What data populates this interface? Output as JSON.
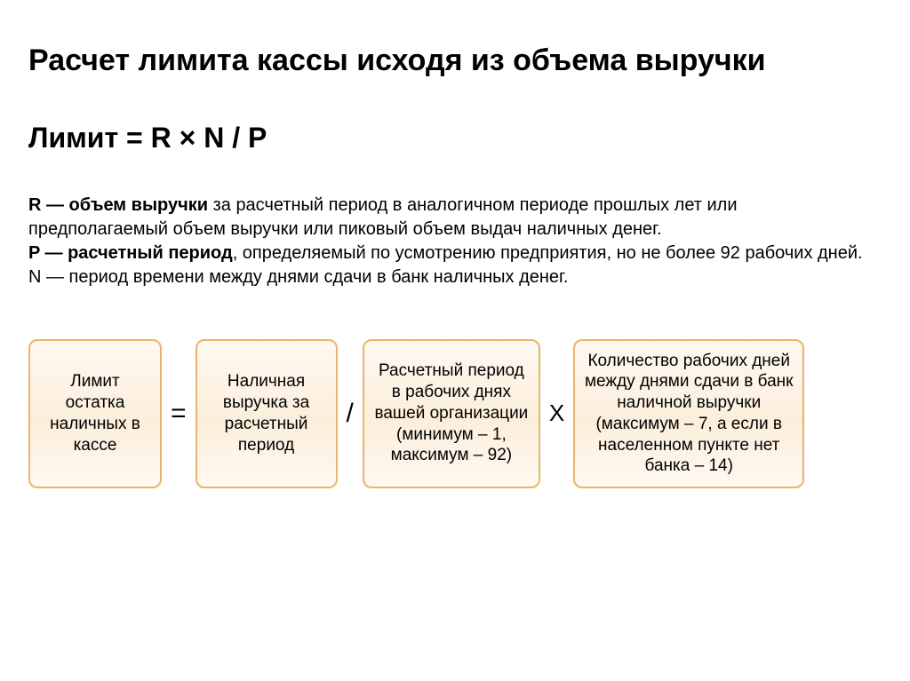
{
  "title": "Расчет лимита кассы исходя из объема выручки",
  "formula": "Лимит = R × N / P",
  "title_fontsize": 34,
  "formula_fontsize": 32,
  "definitions_fontsize": 20,
  "definitions": [
    {
      "term": "R — объем выручки",
      "rest": " за расчетный период в аналогичном периоде прошлых лет или предполагаемый объем выручки или пиковый объем выдач наличных денег."
    },
    {
      "term": "P — расчетный период",
      "rest": ", определяемый по усмотрению предприятия, но не более 92 рабочих дней."
    },
    {
      "plain": "N — период времени между днями сдачи в банк наличных денег."
    }
  ],
  "operators": {
    "eq": "=",
    "div": "/",
    "mul": "X"
  },
  "tile_style": {
    "border_color": "#e9b56a",
    "border_width": 2,
    "background": "linear-gradient(#fef9f2, #fceedb 55%, #fef9f2)",
    "radius": 10,
    "fontsize": 19
  },
  "tiles": [
    {
      "text": "Лимит остатка наличных в кассе"
    },
    {
      "text": "Наличная выручка за расчетный период"
    },
    {
      "text": "Расчетный период в рабочих днях вашей организации (минимум – 1, максимум – 92)"
    },
    {
      "text": "Количество рабочих дней между днями сдачи в банк наличной выручки (максимум – 7, а если в населенном пункте нет банка – 14)"
    }
  ]
}
